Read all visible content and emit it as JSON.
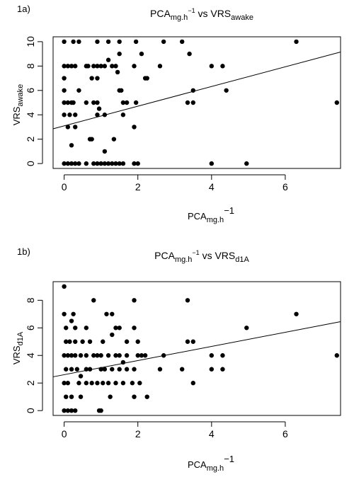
{
  "chart_data": [
    {
      "type": "scatter",
      "panel_label": "1a)",
      "title": {
        "base1": "PCA",
        "sub1": "mg.h",
        "sup1": "−1",
        "mid": " vs VRS",
        "sub2": "awake"
      },
      "xlabel": {
        "base": "PCA",
        "sub": "mg.h",
        "sup": "−1"
      },
      "ylabel": {
        "base": "VRS",
        "sub": "awake"
      },
      "xlim": [
        -0.3,
        7.5
      ],
      "ylim": [
        -0.4,
        10.4
      ],
      "xticks": [
        0,
        2,
        4,
        6
      ],
      "yticks": [
        0,
        2,
        4,
        6,
        8,
        10
      ],
      "grid": false,
      "legend": "none",
      "regression_line": {
        "x": [
          -0.3,
          7.5
        ],
        "y": [
          2.85,
          9.15
        ]
      },
      "points": [
        [
          0,
          10
        ],
        [
          0.25,
          10
        ],
        [
          0.4,
          10
        ],
        [
          0.9,
          10
        ],
        [
          1.2,
          10
        ],
        [
          1.5,
          10
        ],
        [
          1.95,
          10
        ],
        [
          2.7,
          10
        ],
        [
          3.2,
          10
        ],
        [
          6.3,
          10
        ],
        [
          1.5,
          9
        ],
        [
          2.1,
          9
        ],
        [
          3.4,
          9
        ],
        [
          0,
          8
        ],
        [
          0.1,
          8
        ],
        [
          0.2,
          8
        ],
        [
          0.3,
          8
        ],
        [
          0.6,
          8
        ],
        [
          0.65,
          8
        ],
        [
          0.8,
          8
        ],
        [
          0.9,
          8
        ],
        [
          1.0,
          8
        ],
        [
          1.1,
          8
        ],
        [
          1.3,
          8
        ],
        [
          1.4,
          8
        ],
        [
          1.9,
          8
        ],
        [
          2.6,
          8
        ],
        [
          4.0,
          8
        ],
        [
          4.3,
          8
        ],
        [
          1.2,
          8.5
        ],
        [
          1.45,
          7.5
        ],
        [
          2.2,
          7
        ],
        [
          2.25,
          7
        ],
        [
          0,
          7
        ],
        [
          0.75,
          7
        ],
        [
          0.9,
          7
        ],
        [
          0,
          6
        ],
        [
          0.4,
          6
        ],
        [
          1.5,
          6
        ],
        [
          1.55,
          6
        ],
        [
          3.5,
          6
        ],
        [
          4.4,
          6
        ],
        [
          0,
          5
        ],
        [
          0.1,
          5
        ],
        [
          0.2,
          5
        ],
        [
          0.25,
          5
        ],
        [
          0.6,
          5
        ],
        [
          0.8,
          5
        ],
        [
          0.9,
          5
        ],
        [
          1.6,
          5
        ],
        [
          1.7,
          5
        ],
        [
          1.95,
          5
        ],
        [
          3.35,
          5
        ],
        [
          3.5,
          5
        ],
        [
          7.4,
          5
        ],
        [
          0.95,
          4.5
        ],
        [
          0,
          4
        ],
        [
          0.15,
          4
        ],
        [
          0.3,
          4
        ],
        [
          0.9,
          4
        ],
        [
          1.1,
          4
        ],
        [
          1.6,
          4
        ],
        [
          0.1,
          3
        ],
        [
          0.3,
          3
        ],
        [
          1.9,
          3
        ],
        [
          0.7,
          2
        ],
        [
          0.75,
          2
        ],
        [
          1.35,
          2
        ],
        [
          0.2,
          1.5
        ],
        [
          1.1,
          1
        ],
        [
          0,
          0
        ],
        [
          0.1,
          0
        ],
        [
          0.2,
          0
        ],
        [
          0.3,
          0
        ],
        [
          0.4,
          0
        ],
        [
          0.6,
          0
        ],
        [
          0.8,
          0
        ],
        [
          0.9,
          0
        ],
        [
          1.0,
          0
        ],
        [
          1.1,
          0
        ],
        [
          1.2,
          0
        ],
        [
          1.3,
          0
        ],
        [
          1.4,
          0
        ],
        [
          1.5,
          0
        ],
        [
          1.6,
          0
        ],
        [
          1.9,
          0
        ],
        [
          2.0,
          0
        ],
        [
          4.0,
          0
        ],
        [
          4.95,
          0
        ]
      ]
    },
    {
      "type": "scatter",
      "panel_label": "1b)",
      "title": {
        "base1": "PCA",
        "sub1": "mg.h",
        "sup1": "−1",
        "mid": " vs VRS",
        "sub2": "d1A"
      },
      "xlabel": {
        "base": "PCA",
        "sub": "mg.h",
        "sup": "−1"
      },
      "ylabel": {
        "base": "VRS",
        "sub": "d1A"
      },
      "xlim": [
        -0.3,
        7.5
      ],
      "ylim": [
        -0.35,
        9.35
      ],
      "xticks": [
        0,
        2,
        4,
        6
      ],
      "yticks": [
        0,
        2,
        4,
        6,
        8
      ],
      "grid": false,
      "legend": "none",
      "regression_line": {
        "x": [
          -0.3,
          7.5
        ],
        "y": [
          2.45,
          6.45
        ]
      },
      "points": [
        [
          0,
          9
        ],
        [
          0.8,
          8
        ],
        [
          1.9,
          8
        ],
        [
          3.35,
          8
        ],
        [
          0,
          7
        ],
        [
          0.25,
          7
        ],
        [
          1.15,
          7
        ],
        [
          1.3,
          7
        ],
        [
          6.3,
          7
        ],
        [
          0.2,
          6.5
        ],
        [
          0.05,
          6
        ],
        [
          0.3,
          6
        ],
        [
          0.6,
          6
        ],
        [
          1.4,
          6
        ],
        [
          1.5,
          6
        ],
        [
          1.9,
          6
        ],
        [
          4.95,
          6
        ],
        [
          1.3,
          5.5
        ],
        [
          0.05,
          5
        ],
        [
          0.15,
          5
        ],
        [
          0.3,
          5
        ],
        [
          0.5,
          5
        ],
        [
          0.7,
          5
        ],
        [
          1.05,
          5
        ],
        [
          1.7,
          5
        ],
        [
          2.0,
          5
        ],
        [
          3.35,
          5
        ],
        [
          3.5,
          5
        ],
        [
          0,
          4
        ],
        [
          0.1,
          4
        ],
        [
          0.2,
          4
        ],
        [
          0.3,
          4
        ],
        [
          0.45,
          4
        ],
        [
          0.6,
          4
        ],
        [
          0.8,
          4
        ],
        [
          0.9,
          4
        ],
        [
          1.0,
          4
        ],
        [
          1.2,
          4
        ],
        [
          1.4,
          4
        ],
        [
          1.5,
          4
        ],
        [
          1.7,
          4
        ],
        [
          2.0,
          4
        ],
        [
          2.1,
          4
        ],
        [
          2.2,
          4
        ],
        [
          2.7,
          4
        ],
        [
          4.0,
          4
        ],
        [
          4.3,
          4
        ],
        [
          7.4,
          4
        ],
        [
          1.6,
          3.5
        ],
        [
          0.05,
          3
        ],
        [
          0.2,
          3
        ],
        [
          0.35,
          3
        ],
        [
          0.6,
          3
        ],
        [
          0.7,
          3
        ],
        [
          1.0,
          3
        ],
        [
          1.1,
          3
        ],
        [
          1.3,
          3
        ],
        [
          1.5,
          3
        ],
        [
          1.7,
          3
        ],
        [
          1.9,
          3
        ],
        [
          2.6,
          3
        ],
        [
          3.2,
          3
        ],
        [
          4.0,
          3
        ],
        [
          4.3,
          3
        ],
        [
          0.45,
          2.5
        ],
        [
          0,
          2
        ],
        [
          0.1,
          2
        ],
        [
          0.4,
          2
        ],
        [
          0.6,
          2
        ],
        [
          0.75,
          2
        ],
        [
          0.9,
          2
        ],
        [
          1.05,
          2
        ],
        [
          1.2,
          2
        ],
        [
          1.4,
          2
        ],
        [
          1.6,
          2
        ],
        [
          1.85,
          2
        ],
        [
          2.05,
          2
        ],
        [
          3.5,
          2
        ],
        [
          0.05,
          1
        ],
        [
          0.2,
          1
        ],
        [
          0.45,
          1
        ],
        [
          1.25,
          1
        ],
        [
          1.9,
          1
        ],
        [
          2.25,
          1
        ],
        [
          0,
          0
        ],
        [
          0.1,
          0
        ],
        [
          0.2,
          0
        ],
        [
          0.3,
          0
        ],
        [
          0.95,
          0
        ],
        [
          1.0,
          0
        ]
      ]
    }
  ]
}
